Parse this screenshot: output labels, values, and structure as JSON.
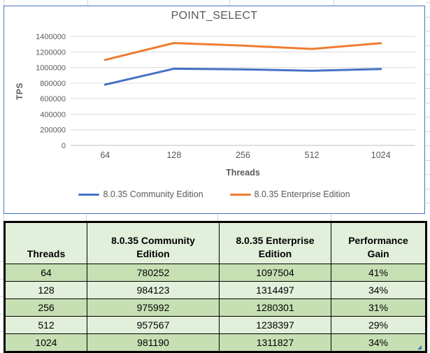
{
  "chart_data": {
    "type": "line",
    "title": "POINT_SELECT",
    "xlabel": "Threads",
    "ylabel": "TPS",
    "categories": [
      "64",
      "128",
      "256",
      "512",
      "1024"
    ],
    "series": [
      {
        "name": "8.0.35 Community Edition",
        "color": "#4472C4",
        "values": [
          780252,
          984123,
          975992,
          957567,
          981190
        ]
      },
      {
        "name": "8.0.35 Enterprise Edition",
        "color": "#ED7D31",
        "values": [
          1097504,
          1314497,
          1280301,
          1238397,
          1311827
        ]
      }
    ],
    "ylim": [
      0,
      1400000
    ],
    "ytick_step": 200000,
    "grid": true,
    "legend_position": "bottom"
  },
  "table": {
    "header_lines": [
      [
        "Threads"
      ],
      [
        "8.0.35 Community",
        "Edition"
      ],
      [
        "8.0.35 Enterprise",
        "Edition"
      ],
      [
        "Performance",
        "Gain"
      ]
    ],
    "rows": [
      [
        "64",
        "780252",
        "1097504",
        "41%"
      ],
      [
        "128",
        "984123",
        "1314497",
        "34%"
      ],
      [
        "256",
        "975992",
        "1280301",
        "31%"
      ],
      [
        "512",
        "957567",
        "1238397",
        "29%"
      ],
      [
        "1024",
        "981190",
        "1311827",
        "34%"
      ]
    ],
    "header_fill": "#E2EFDA",
    "row_fills": [
      "#C6E0B4",
      "#E2EFDA",
      "#C6E0B4",
      "#E2EFDA",
      "#C6E0B4"
    ]
  },
  "colors": {
    "chart_border": "#4472C4",
    "chart_text": "#595959",
    "plot_gridline": "#D9D9D9",
    "axis_line": "#BFBFBF",
    "table_border": "#000000",
    "excel_gridline": "#D4D4D4",
    "fill_handle": "#4472C4"
  }
}
